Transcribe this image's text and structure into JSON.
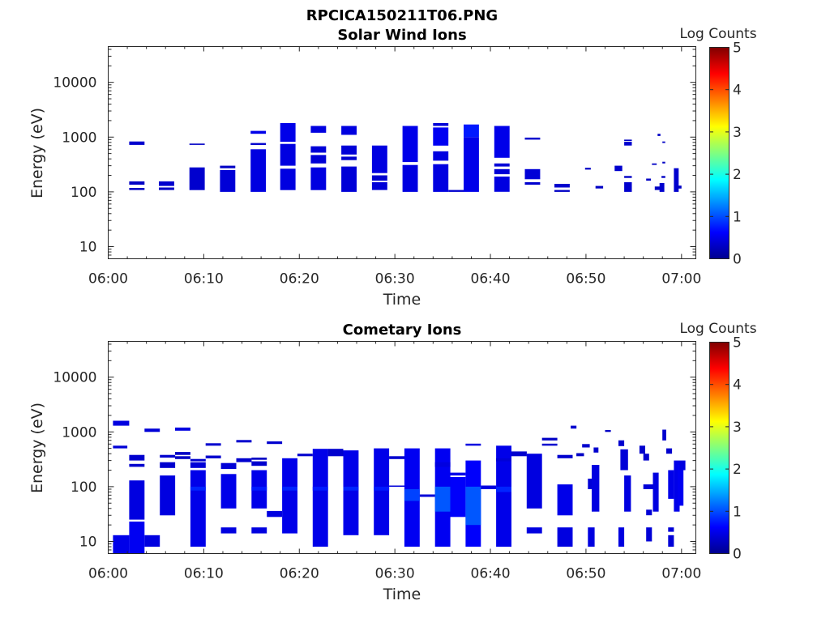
{
  "figure": {
    "title": "RPCICA150211T06.PNG"
  },
  "colorbar": {
    "label": "Log Counts",
    "range": [
      0,
      5
    ],
    "ticks": [
      "0",
      "1",
      "2",
      "3",
      "4",
      "5"
    ],
    "colormap": "jet"
  },
  "chart_data": [
    {
      "type": "heatmap",
      "title": "Solar Wind Ions",
      "xlabel": "Time",
      "ylabel": "Energy (eV)",
      "xlim_min": [
        0,
        61.5
      ],
      "ylim": [
        6,
        45000
      ],
      "y_scale": "log",
      "x_ticks": [
        "06:00",
        "06:10",
        "06:20",
        "06:30",
        "06:40",
        "06:50",
        "07:00"
      ],
      "y_ticks": [
        "10",
        "100",
        "1000",
        "10000"
      ],
      "cells_fields": [
        "t_start_min",
        "t_end_min",
        "e_low_eV",
        "e_high_eV",
        "log_counts"
      ],
      "cells": [
        [
          2.2,
          3.8,
          720,
          830,
          0.35
        ],
        [
          2.2,
          3.8,
          135,
          155,
          0.3
        ],
        [
          2.2,
          3.8,
          108,
          118,
          0.3
        ],
        [
          5.3,
          6.9,
          128,
          155,
          0.35
        ],
        [
          5.3,
          6.9,
          108,
          120,
          0.3
        ],
        [
          8.5,
          10.1,
          108,
          280,
          0.35
        ],
        [
          8.5,
          10.1,
          720,
          760,
          0.3
        ],
        [
          11.7,
          13.3,
          100,
          250,
          0.4
        ],
        [
          11.7,
          13.3,
          270,
          300,
          0.3
        ],
        [
          14.9,
          16.5,
          100,
          600,
          0.45
        ],
        [
          14.9,
          16.5,
          720,
          780,
          0.35
        ],
        [
          14.9,
          16.5,
          1150,
          1300,
          0.5
        ],
        [
          18.0,
          19.6,
          108,
          265,
          0.45
        ],
        [
          18.0,
          19.6,
          300,
          750,
          0.45
        ],
        [
          18.0,
          19.6,
          820,
          1800,
          0.5
        ],
        [
          21.2,
          22.8,
          108,
          280,
          0.45
        ],
        [
          21.2,
          22.8,
          330,
          470,
          0.4
        ],
        [
          21.2,
          22.8,
          520,
          680,
          0.4
        ],
        [
          21.2,
          22.8,
          1200,
          1600,
          0.45
        ],
        [
          24.4,
          26.0,
          100,
          290,
          0.4
        ],
        [
          24.4,
          26.0,
          380,
          440,
          0.35
        ],
        [
          24.4,
          26.0,
          480,
          700,
          0.4
        ],
        [
          24.4,
          26.0,
          1100,
          1600,
          0.45
        ],
        [
          27.6,
          29.2,
          108,
          150,
          0.4
        ],
        [
          27.6,
          29.2,
          160,
          200,
          0.35
        ],
        [
          27.6,
          29.2,
          220,
          700,
          0.45
        ],
        [
          30.8,
          32.4,
          100,
          310,
          0.45
        ],
        [
          30.8,
          32.4,
          350,
          1600,
          0.5
        ],
        [
          34.0,
          35.6,
          100,
          320,
          0.45
        ],
        [
          34.0,
          35.6,
          370,
          550,
          0.45
        ],
        [
          34.0,
          35.6,
          700,
          1500,
          0.55
        ],
        [
          34.0,
          35.6,
          1600,
          1800,
          0.4
        ],
        [
          35.6,
          37.2,
          100,
          108,
          0.35
        ],
        [
          37.2,
          38.8,
          100,
          1000,
          0.5
        ],
        [
          37.2,
          38.8,
          1000,
          1700,
          0.75
        ],
        [
          40.4,
          42.0,
          100,
          190,
          0.45
        ],
        [
          40.4,
          42.0,
          210,
          260,
          0.4
        ],
        [
          40.4,
          42.0,
          290,
          330,
          0.4
        ],
        [
          40.4,
          42.0,
          420,
          1600,
          0.5
        ],
        [
          43.6,
          45.2,
          135,
          150,
          0.35
        ],
        [
          43.6,
          45.2,
          170,
          260,
          0.4
        ],
        [
          43.6,
          45.2,
          900,
          980,
          0.35
        ],
        [
          46.7,
          48.3,
          120,
          140,
          0.35
        ],
        [
          46.7,
          48.3,
          100,
          108,
          0.3
        ],
        [
          49.9,
          50.5,
          255,
          275,
          0.3
        ],
        [
          51.0,
          51.8,
          115,
          128,
          0.3
        ],
        [
          53.0,
          53.8,
          240,
          300,
          0.35
        ],
        [
          54.0,
          54.8,
          100,
          150,
          0.35
        ],
        [
          54.0,
          54.8,
          180,
          195,
          0.3
        ],
        [
          54.0,
          54.8,
          700,
          820,
          0.35
        ],
        [
          54.0,
          54.8,
          850,
          900,
          0.3
        ],
        [
          56.3,
          56.8,
          160,
          175,
          0.3
        ],
        [
          56.9,
          57.4,
          310,
          330,
          0.3
        ],
        [
          57.2,
          57.9,
          108,
          125,
          0.3
        ],
        [
          57.7,
          58.2,
          100,
          145,
          0.35
        ],
        [
          57.9,
          58.3,
          180,
          195,
          0.3
        ],
        [
          58.0,
          58.3,
          330,
          355,
          0.3
        ],
        [
          57.5,
          57.8,
          1050,
          1150,
          0.3
        ],
        [
          58.0,
          58.3,
          780,
          830,
          0.3
        ],
        [
          59.2,
          59.7,
          100,
          270,
          0.35
        ],
        [
          59.5,
          60.0,
          115,
          130,
          0.3
        ]
      ]
    },
    {
      "type": "heatmap",
      "title": "Cometary Ions",
      "xlabel": "Time",
      "ylabel": "Energy (eV)",
      "xlim_min": [
        0,
        61.5
      ],
      "ylim": [
        6,
        45000
      ],
      "y_scale": "log",
      "x_ticks": [
        "06:00",
        "06:10",
        "06:20",
        "06:30",
        "06:40",
        "06:50",
        "07:00"
      ],
      "y_ticks": [
        "10",
        "100",
        "1000",
        "10000"
      ],
      "cells_fields": [
        "t_start_min",
        "t_end_min",
        "e_low_eV",
        "e_high_eV",
        "log_counts"
      ],
      "cells": [
        [
          0.5,
          2.2,
          1300,
          1600,
          0.45
        ],
        [
          0.5,
          2.0,
          500,
          560,
          0.4
        ],
        [
          0.5,
          2.2,
          6,
          13,
          0.5
        ],
        [
          2.2,
          3.8,
          300,
          380,
          0.35
        ],
        [
          2.2,
          3.8,
          230,
          260,
          0.35
        ],
        [
          2.2,
          3.8,
          25,
          130,
          0.45
        ],
        [
          2.2,
          3.8,
          6,
          23,
          0.55
        ],
        [
          3.8,
          5.4,
          1000,
          1150,
          0.4
        ],
        [
          3.8,
          5.4,
          8,
          13,
          0.45
        ],
        [
          5.4,
          7.0,
          340,
          380,
          0.35
        ],
        [
          5.4,
          7.0,
          220,
          280,
          0.35
        ],
        [
          5.4,
          7.0,
          30,
          160,
          0.45
        ],
        [
          7.0,
          8.6,
          1050,
          1200,
          0.45
        ],
        [
          7.0,
          8.6,
          380,
          430,
          0.3
        ],
        [
          7.0,
          8.6,
          320,
          360,
          0.3
        ],
        [
          8.6,
          10.2,
          8,
          200,
          0.5
        ],
        [
          8.6,
          10.2,
          85,
          100,
          0.8
        ],
        [
          8.6,
          10.2,
          220,
          280,
          0.4
        ],
        [
          8.6,
          10.2,
          290,
          320,
          0.35
        ],
        [
          10.2,
          11.8,
          560,
          620,
          0.35
        ],
        [
          10.2,
          11.8,
          330,
          370,
          0.35
        ],
        [
          11.8,
          13.4,
          14,
          18,
          0.45
        ],
        [
          11.8,
          13.4,
          40,
          170,
          0.5
        ],
        [
          11.8,
          13.4,
          210,
          270,
          0.4
        ],
        [
          13.4,
          15.0,
          640,
          710,
          0.35
        ],
        [
          13.4,
          15.0,
          280,
          330,
          0.35
        ],
        [
          15.0,
          16.6,
          14,
          18,
          0.45
        ],
        [
          15.0,
          16.6,
          40,
          200,
          0.5
        ],
        [
          15.0,
          16.6,
          85,
          100,
          0.75
        ],
        [
          15.0,
          16.6,
          240,
          290,
          0.35
        ],
        [
          15.0,
          16.6,
          310,
          340,
          0.3
        ],
        [
          16.6,
          18.2,
          600,
          670,
          0.35
        ],
        [
          16.6,
          18.2,
          28,
          36,
          0.45
        ],
        [
          18.2,
          19.8,
          14,
          330,
          0.5
        ],
        [
          18.2,
          19.8,
          85,
          100,
          0.8
        ],
        [
          19.8,
          21.4,
          360,
          400,
          0.35
        ],
        [
          21.4,
          23.0,
          8,
          490,
          0.5
        ],
        [
          21.4,
          23.0,
          85,
          100,
          0.75
        ],
        [
          23.0,
          24.6,
          360,
          490,
          0.35
        ],
        [
          24.6,
          26.2,
          13,
          460,
          0.5
        ],
        [
          24.6,
          26.2,
          85,
          100,
          0.8
        ],
        [
          27.8,
          29.4,
          13,
          500,
          0.5
        ],
        [
          27.8,
          29.4,
          85,
          100,
          0.75
        ],
        [
          29.4,
          31.0,
          320,
          360,
          0.35
        ],
        [
          29.4,
          31.0,
          100,
          105,
          0.4
        ],
        [
          31.0,
          32.6,
          8,
          500,
          0.55
        ],
        [
          31.0,
          32.6,
          55,
          90,
          0.95
        ],
        [
          32.6,
          34.2,
          65,
          72,
          0.4
        ],
        [
          34.2,
          35.8,
          8,
          500,
          0.55
        ],
        [
          34.2,
          35.8,
          35,
          100,
          1.05
        ],
        [
          34.2,
          35.8,
          230,
          280,
          0.45
        ],
        [
          35.8,
          37.4,
          28,
          150,
          0.6
        ],
        [
          35.8,
          37.4,
          160,
          180,
          0.5
        ],
        [
          37.4,
          39.0,
          8,
          300,
          0.6
        ],
        [
          37.4,
          39.0,
          20,
          100,
          1.05
        ],
        [
          37.4,
          39.0,
          560,
          610,
          0.45
        ],
        [
          39.0,
          40.6,
          90,
          105,
          0.45
        ],
        [
          40.6,
          42.2,
          8,
          560,
          0.5
        ],
        [
          40.6,
          42.2,
          80,
          100,
          0.8
        ],
        [
          40.6,
          42.2,
          290,
          330,
          0.4
        ],
        [
          42.2,
          43.8,
          360,
          440,
          0.35
        ],
        [
          43.8,
          45.4,
          40,
          400,
          0.45
        ],
        [
          43.8,
          45.4,
          14,
          18,
          0.45
        ],
        [
          45.4,
          47.0,
          560,
          610,
          0.35
        ],
        [
          45.4,
          47.0,
          700,
          780,
          0.3
        ],
        [
          47.0,
          48.6,
          8,
          18,
          0.45
        ],
        [
          47.0,
          48.6,
          30,
          110,
          0.5
        ],
        [
          47.0,
          48.6,
          330,
          380,
          0.35
        ],
        [
          48.4,
          49.0,
          1150,
          1300,
          0.35
        ],
        [
          49.0,
          49.8,
          360,
          410,
          0.3
        ],
        [
          49.6,
          50.4,
          520,
          600,
          0.35
        ],
        [
          50.2,
          50.9,
          8,
          18,
          0.45
        ],
        [
          50.2,
          50.9,
          90,
          140,
          0.4
        ],
        [
          50.6,
          51.4,
          35,
          250,
          0.45
        ],
        [
          50.8,
          51.3,
          420,
          520,
          0.35
        ],
        [
          52.0,
          52.6,
          1000,
          1080,
          0.3
        ],
        [
          53.4,
          54.0,
          8,
          18,
          0.45
        ],
        [
          53.4,
          54.0,
          550,
          700,
          0.35
        ],
        [
          53.6,
          54.4,
          200,
          480,
          0.4
        ],
        [
          54.0,
          54.7,
          35,
          160,
          0.45
        ],
        [
          55.6,
          56.2,
          400,
          560,
          0.35
        ],
        [
          56.0,
          56.6,
          300,
          400,
          0.35
        ],
        [
          56.3,
          56.9,
          30,
          38,
          0.4
        ],
        [
          56.3,
          56.9,
          10,
          18,
          0.4
        ],
        [
          56.0,
          57.0,
          90,
          110,
          0.4
        ],
        [
          57.0,
          57.6,
          35,
          180,
          0.45
        ],
        [
          58.0,
          58.4,
          700,
          1100,
          0.35
        ],
        [
          58.4,
          59.0,
          400,
          500,
          0.35
        ],
        [
          58.6,
          59.2,
          8,
          13,
          0.4
        ],
        [
          58.6,
          59.2,
          15,
          18,
          0.4
        ],
        [
          58.6,
          59.2,
          60,
          200,
          0.5
        ],
        [
          59.2,
          59.8,
          35,
          300,
          0.5
        ],
        [
          59.6,
          60.2,
          45,
          250,
          0.55
        ],
        [
          59.8,
          60.4,
          200,
          300,
          0.45
        ]
      ]
    }
  ]
}
